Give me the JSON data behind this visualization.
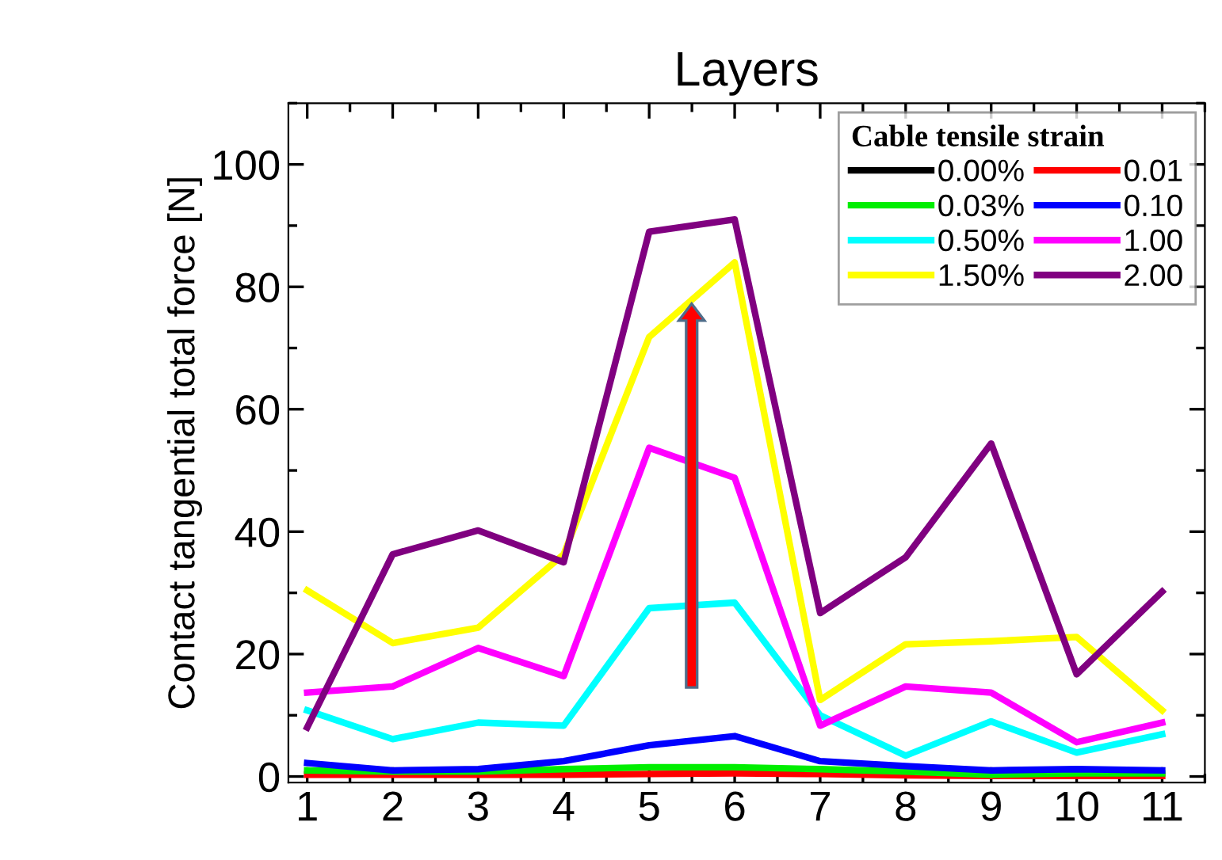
{
  "chart_data": {
    "type": "line",
    "title": "Layers",
    "ylabel": "Contact tangential total force [N]",
    "legend_title": "Cable tensile strain",
    "x": [
      1,
      2,
      3,
      4,
      5,
      6,
      7,
      8,
      9,
      10,
      11
    ],
    "series": [
      {
        "name": "0.00%",
        "color": "#000000",
        "values": [
          null,
          null,
          null,
          null,
          null,
          null,
          null,
          null,
          null,
          null,
          null
        ]
      },
      {
        "name": "0.01",
        "color": "#ff0000",
        "values": [
          0.3,
          0.3,
          0.3,
          0.3,
          0.4,
          0.5,
          0.4,
          0.2,
          0.1,
          0.1,
          0.1
        ]
      },
      {
        "name": "0.03%",
        "color": "#00ee00",
        "values": [
          1.0,
          0.8,
          0.8,
          1.2,
          1.5,
          1.5,
          1.2,
          0.8,
          0.3,
          0.5,
          0.5
        ]
      },
      {
        "name": "0.10",
        "color": "#0000ff",
        "values": [
          2.2,
          1.0,
          1.2,
          2.5,
          5.1,
          6.6,
          2.5,
          1.7,
          1.0,
          1.2,
          1.0
        ]
      },
      {
        "name": "0.50%",
        "color": "#00ffff",
        "values": [
          10.8,
          6.1,
          8.8,
          8.3,
          27.5,
          28.4,
          10.0,
          3.4,
          9.0,
          3.9,
          6.9
        ]
      },
      {
        "name": "1.00",
        "color": "#ff00ff",
        "values": [
          13.7,
          14.7,
          21.0,
          16.4,
          53.7,
          48.8,
          8.3,
          14.7,
          13.7,
          5.6,
          8.8
        ]
      },
      {
        "name": "1.50%",
        "color": "#ffff00",
        "values": [
          30.4,
          21.8,
          24.3,
          36.3,
          71.8,
          84.0,
          12.5,
          21.6,
          22.1,
          22.8,
          10.8
        ]
      },
      {
        "name": "2.00",
        "color": "#800080",
        "values": [
          8.0,
          36.3,
          40.2,
          35.0,
          89.0,
          91.0,
          26.7,
          35.8,
          54.4,
          16.7,
          30.2
        ]
      }
    ],
    "xlim": [
      0.78,
      11.5
    ],
    "xticks": [
      1,
      2,
      3,
      4,
      5,
      6,
      7,
      8,
      9,
      10,
      11
    ],
    "ylim": [
      -1,
      110
    ],
    "yticks": [
      0,
      20,
      40,
      60,
      80,
      100
    ],
    "grid": false,
    "legend": "top right",
    "marker": "none",
    "line_style": "solid"
  }
}
